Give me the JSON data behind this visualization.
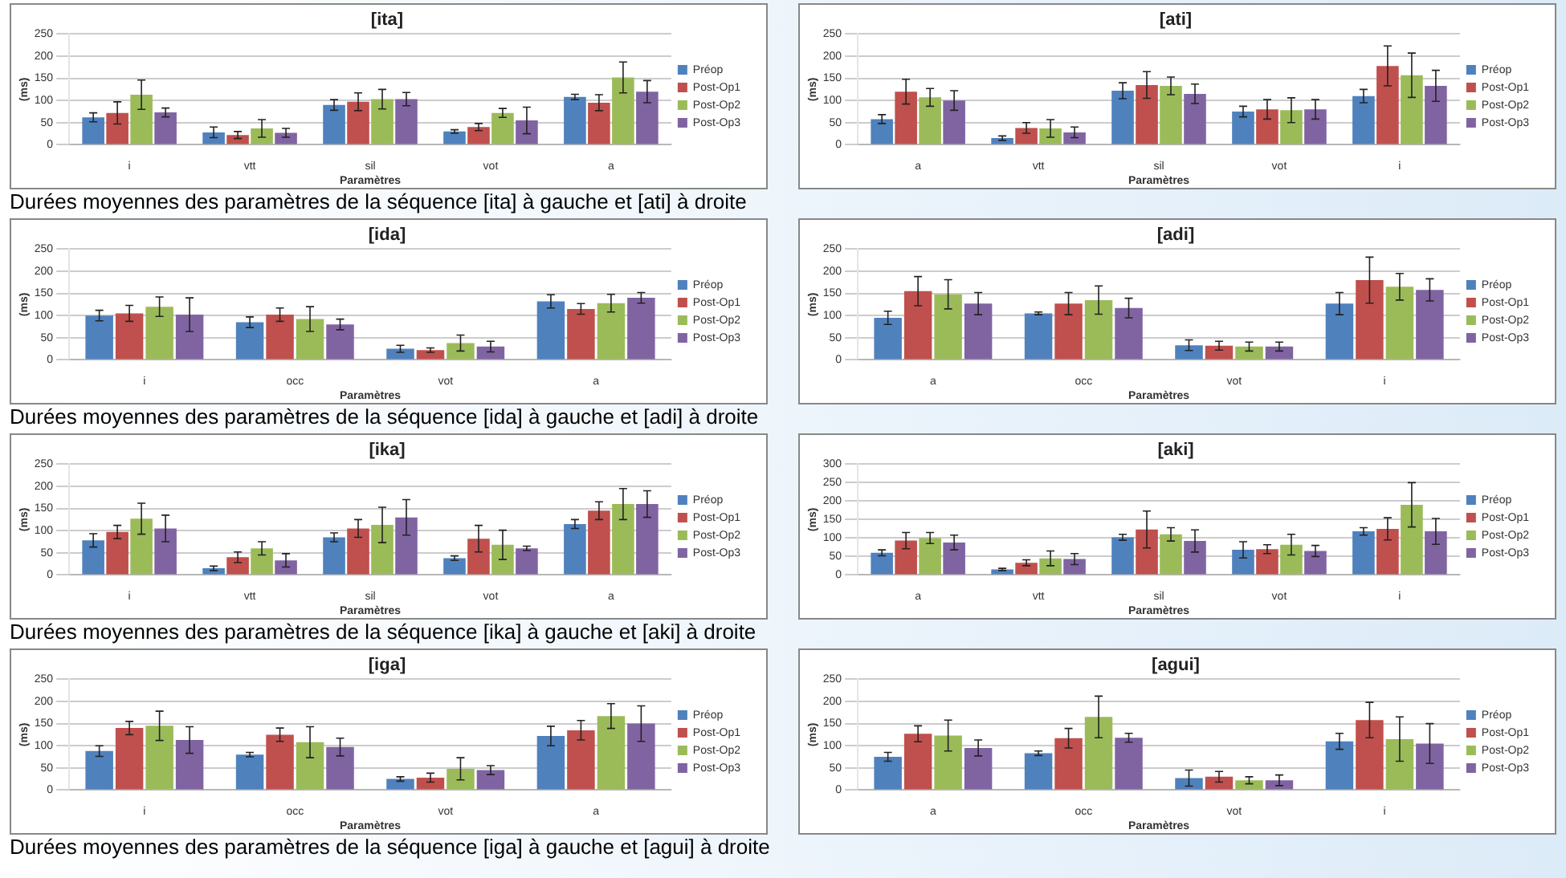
{
  "chart_data": [
    {
      "type": "bar",
      "title": "[ita]",
      "xlabel": "Paramètres",
      "ylabel": "(ms)",
      "ylim": [
        0,
        250
      ],
      "yticks": [
        0,
        50,
        100,
        150,
        200,
        250
      ],
      "grid": "y",
      "legend": "right",
      "categories": [
        "i",
        "vtt",
        "sil",
        "vot",
        "a"
      ],
      "annotations": [
        "Durées moyennes des paramètres de la séquence [ita] à gauche et [ati] à droite"
      ],
      "series": [
        {
          "name": "Préop",
          "color": "#4f81bd",
          "values": [
            62,
            28,
            90,
            30,
            108
          ],
          "errors": [
            10,
            12,
            12,
            4,
            6
          ]
        },
        {
          "name": "Post-Op1",
          "color": "#c0504d",
          "values": [
            72,
            22,
            97,
            40,
            95
          ],
          "errors": [
            25,
            8,
            20,
            8,
            18
          ]
        },
        {
          "name": "Post-Op2",
          "color": "#9bbb59",
          "values": [
            113,
            37,
            103,
            72,
            152
          ],
          "errors": [
            33,
            20,
            22,
            10,
            35
          ]
        },
        {
          "name": "Post-Op3",
          "color": "#8064a2",
          "values": [
            73,
            27,
            103,
            55,
            120
          ],
          "errors": [
            10,
            10,
            15,
            30,
            25
          ]
        }
      ]
    },
    {
      "type": "bar",
      "title": "[ati]",
      "xlabel": "Paramètres",
      "ylabel": "(ms)",
      "ylim": [
        0,
        250
      ],
      "yticks": [
        0,
        50,
        100,
        150,
        200,
        250
      ],
      "grid": "y",
      "legend": "right",
      "categories": [
        "a",
        "vtt",
        "sil",
        "vot",
        "i"
      ],
      "series": [
        {
          "name": "Préop",
          "color": "#4f81bd",
          "values": [
            58,
            15,
            122,
            75,
            110
          ],
          "errors": [
            10,
            5,
            18,
            12,
            15
          ]
        },
        {
          "name": "Post-Op1",
          "color": "#c0504d",
          "values": [
            120,
            38,
            135,
            80,
            178
          ],
          "errors": [
            28,
            12,
            30,
            22,
            45
          ]
        },
        {
          "name": "Post-Op2",
          "color": "#9bbb59",
          "values": [
            107,
            37,
            133,
            78,
            157
          ],
          "errors": [
            20,
            20,
            20,
            28,
            50
          ]
        },
        {
          "name": "Post-Op3",
          "color": "#8064a2",
          "values": [
            100,
            28,
            115,
            80,
            133
          ],
          "errors": [
            22,
            12,
            22,
            22,
            35
          ]
        }
      ]
    },
    {
      "type": "bar",
      "title": "[ida]",
      "xlabel": "Paramètres",
      "ylabel": "(ms)",
      "ylim": [
        0,
        250
      ],
      "yticks": [
        0,
        50,
        100,
        150,
        200,
        250
      ],
      "grid": "y",
      "legend": "right",
      "categories": [
        "i",
        "occ",
        "vot",
        "a"
      ],
      "annotations": [
        "Durées moyennes des paramètres de la séquence [ida] à gauche et [adi] à droite"
      ],
      "series": [
        {
          "name": "Préop",
          "color": "#4f81bd",
          "values": [
            100,
            85,
            25,
            132
          ],
          "errors": [
            12,
            12,
            8,
            15
          ]
        },
        {
          "name": "Post-Op1",
          "color": "#c0504d",
          "values": [
            105,
            102,
            22,
            115
          ],
          "errors": [
            18,
            15,
            5,
            12
          ]
        },
        {
          "name": "Post-Op2",
          "color": "#9bbb59",
          "values": [
            120,
            92,
            38,
            128
          ],
          "errors": [
            22,
            28,
            18,
            20
          ]
        },
        {
          "name": "Post-Op3",
          "color": "#8064a2",
          "values": [
            102,
            80,
            30,
            140
          ],
          "errors": [
            38,
            12,
            12,
            12
          ]
        }
      ]
    },
    {
      "type": "bar",
      "title": "[adi]",
      "xlabel": "Paramètres",
      "ylabel": "(ms)",
      "ylim": [
        0,
        250
      ],
      "yticks": [
        0,
        50,
        100,
        150,
        200,
        250
      ],
      "grid": "y",
      "legend": "right",
      "categories": [
        "a",
        "occ",
        "vot",
        "i"
      ],
      "series": [
        {
          "name": "Préop",
          "color": "#4f81bd",
          "values": [
            95,
            105,
            33,
            127
          ],
          "errors": [
            15,
            3,
            12,
            25
          ]
        },
        {
          "name": "Post-Op1",
          "color": "#c0504d",
          "values": [
            155,
            127,
            32,
            180
          ],
          "errors": [
            33,
            25,
            10,
            52
          ]
        },
        {
          "name": "Post-Op2",
          "color": "#9bbb59",
          "values": [
            148,
            135,
            30,
            165
          ],
          "errors": [
            33,
            32,
            10,
            30
          ]
        },
        {
          "name": "Post-Op3",
          "color": "#8064a2",
          "values": [
            127,
            117,
            30,
            158
          ],
          "errors": [
            25,
            22,
            10,
            25
          ]
        }
      ]
    },
    {
      "type": "bar",
      "title": "[ika]",
      "xlabel": "Paramètres",
      "ylabel": "(ms)",
      "ylim": [
        0,
        250
      ],
      "yticks": [
        0,
        50,
        100,
        150,
        200,
        250
      ],
      "grid": "y",
      "legend": "right",
      "categories": [
        "i",
        "vtt",
        "sil",
        "vot",
        "a"
      ],
      "annotations": [
        "Durées moyennes des paramètres de la séquence [ika] à gauche et [aki] à droite"
      ],
      "series": [
        {
          "name": "Préop",
          "color": "#4f81bd",
          "values": [
            78,
            15,
            85,
            38,
            115
          ],
          "errors": [
            15,
            5,
            10,
            5,
            10
          ]
        },
        {
          "name": "Post-Op1",
          "color": "#c0504d",
          "values": [
            97,
            40,
            105,
            82,
            145
          ],
          "errors": [
            15,
            12,
            20,
            30,
            20
          ]
        },
        {
          "name": "Post-Op2",
          "color": "#9bbb59",
          "values": [
            127,
            60,
            113,
            68,
            160
          ],
          "errors": [
            35,
            15,
            40,
            33,
            35
          ]
        },
        {
          "name": "Post-Op3",
          "color": "#8064a2",
          "values": [
            105,
            33,
            130,
            60,
            160
          ],
          "errors": [
            30,
            15,
            40,
            5,
            30
          ]
        }
      ]
    },
    {
      "type": "bar",
      "title": "[aki]",
      "xlabel": "Paramètres",
      "ylabel": "(ms)",
      "ylim": [
        0,
        300
      ],
      "yticks": [
        0,
        50,
        100,
        150,
        200,
        250,
        300
      ],
      "grid": "y",
      "legend": "right",
      "categories": [
        "a",
        "vtt",
        "sil",
        "vot",
        "i"
      ],
      "series": [
        {
          "name": "Préop",
          "color": "#4f81bd",
          "values": [
            60,
            15,
            102,
            68,
            118
          ],
          "errors": [
            8,
            3,
            8,
            22,
            10
          ]
        },
        {
          "name": "Post-Op1",
          "color": "#c0504d",
          "values": [
            93,
            33,
            123,
            70,
            125
          ],
          "errors": [
            22,
            8,
            50,
            12,
            30
          ]
        },
        {
          "name": "Post-Op2",
          "color": "#9bbb59",
          "values": [
            100,
            45,
            110,
            82,
            190
          ],
          "errors": [
            15,
            20,
            18,
            28,
            60
          ]
        },
        {
          "name": "Post-Op3",
          "color": "#8064a2",
          "values": [
            88,
            43,
            92,
            65,
            118
          ],
          "errors": [
            20,
            15,
            30,
            15,
            35
          ]
        }
      ]
    },
    {
      "type": "bar",
      "title": "[iga]",
      "xlabel": "Paramètres",
      "ylabel": "(ms)",
      "ylim": [
        0,
        250
      ],
      "yticks": [
        0,
        50,
        100,
        150,
        200,
        250
      ],
      "grid": "y",
      "legend": "right",
      "categories": [
        "i",
        "occ",
        "vot",
        "a"
      ],
      "annotations": [
        "Durées moyennes des paramètres de la séquence [iga] à gauche et [agui] à droite"
      ],
      "series": [
        {
          "name": "Préop",
          "color": "#4f81bd",
          "values": [
            88,
            80,
            25,
            122
          ],
          "errors": [
            12,
            5,
            5,
            22
          ]
        },
        {
          "name": "Post-Op1",
          "color": "#c0504d",
          "values": [
            140,
            125,
            28,
            135
          ],
          "errors": [
            15,
            15,
            10,
            22
          ]
        },
        {
          "name": "Post-Op2",
          "color": "#9bbb59",
          "values": [
            145,
            108,
            48,
            167
          ],
          "errors": [
            33,
            35,
            25,
            28
          ]
        },
        {
          "name": "Post-Op3",
          "color": "#8064a2",
          "values": [
            113,
            97,
            45,
            150
          ],
          "errors": [
            30,
            20,
            10,
            40
          ]
        }
      ]
    },
    {
      "type": "bar",
      "title": "[agui]",
      "xlabel": "Paramètres",
      "ylabel": "(ms)",
      "ylim": [
        0,
        250
      ],
      "yticks": [
        0,
        50,
        100,
        150,
        200,
        250
      ],
      "grid": "y",
      "legend": "right",
      "categories": [
        "a",
        "occ",
        "vot",
        "i"
      ],
      "series": [
        {
          "name": "Préop",
          "color": "#4f81bd",
          "values": [
            75,
            83,
            27,
            110
          ],
          "errors": [
            10,
            5,
            18,
            18
          ]
        },
        {
          "name": "Post-Op1",
          "color": "#c0504d",
          "values": [
            127,
            117,
            30,
            158
          ],
          "errors": [
            18,
            22,
            12,
            40
          ]
        },
        {
          "name": "Post-Op2",
          "color": "#9bbb59",
          "values": [
            123,
            165,
            22,
            115
          ],
          "errors": [
            35,
            47,
            8,
            50
          ]
        },
        {
          "name": "Post-Op3",
          "color": "#8064a2",
          "values": [
            95,
            118,
            22,
            105
          ],
          "errors": [
            18,
            10,
            12,
            45
          ]
        }
      ]
    }
  ]
}
